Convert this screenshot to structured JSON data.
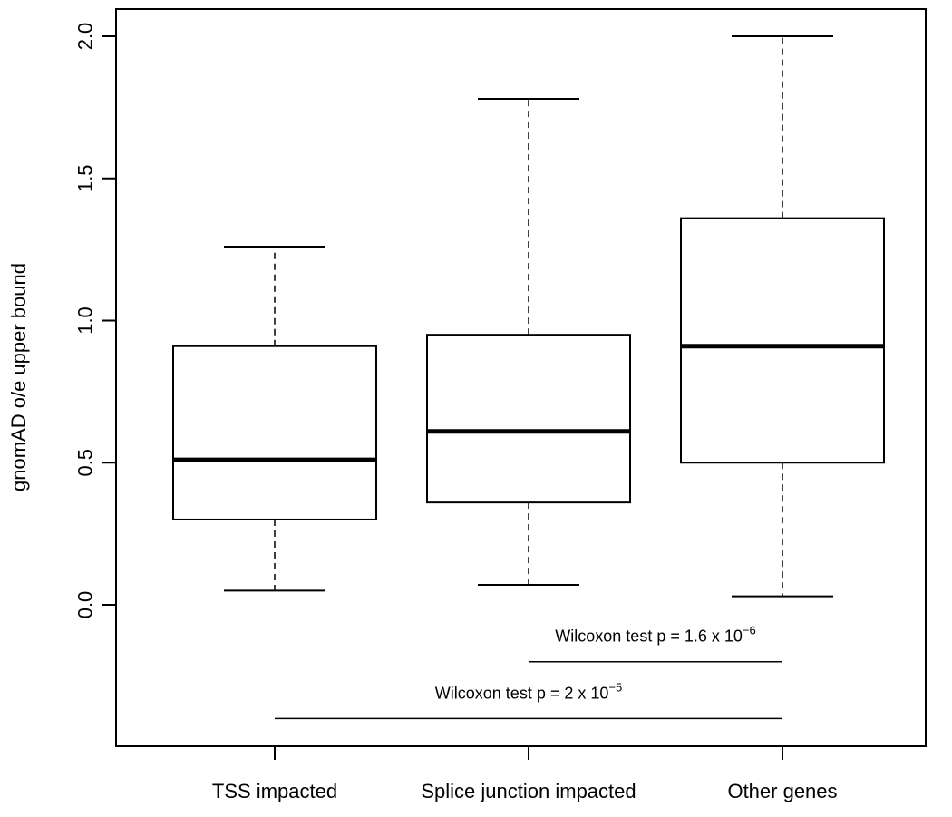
{
  "chart_data": {
    "type": "boxplot",
    "title": "",
    "xlabel": "",
    "ylabel": "gnomAD o/e upper bound",
    "ylim": [
      -0.49,
      2.1
    ],
    "yticks": [
      "0.0",
      "0.5",
      "1.0",
      "1.5",
      "2.0"
    ],
    "grid": false,
    "legend": "none",
    "categories": [
      "TSS impacted",
      "Splice junction impacted",
      "Other genes"
    ],
    "boxes": [
      {
        "category": "TSS impacted",
        "whisker_low": 0.05,
        "q1": 0.3,
        "median": 0.51,
        "q3": 0.91,
        "whisker_high": 1.26
      },
      {
        "category": "Splice junction impacted",
        "whisker_low": 0.07,
        "q1": 0.36,
        "median": 0.61,
        "q3": 0.95,
        "whisker_high": 1.78
      },
      {
        "category": "Other genes",
        "whisker_low": 0.03,
        "q1": 0.5,
        "median": 0.91,
        "q3": 1.36,
        "whisker_high": 2.0
      }
    ],
    "comparisons": [
      {
        "from": "Splice junction impacted",
        "to": "Other genes",
        "y": -0.2,
        "label_main": "Wilcoxon test p = 1.6 x 10",
        "label_exp": "−6"
      },
      {
        "from": "TSS impacted",
        "to": "Other genes",
        "y": -0.4,
        "label_main": "Wilcoxon test p = 2 x 10",
        "label_exp": "−5"
      }
    ]
  }
}
